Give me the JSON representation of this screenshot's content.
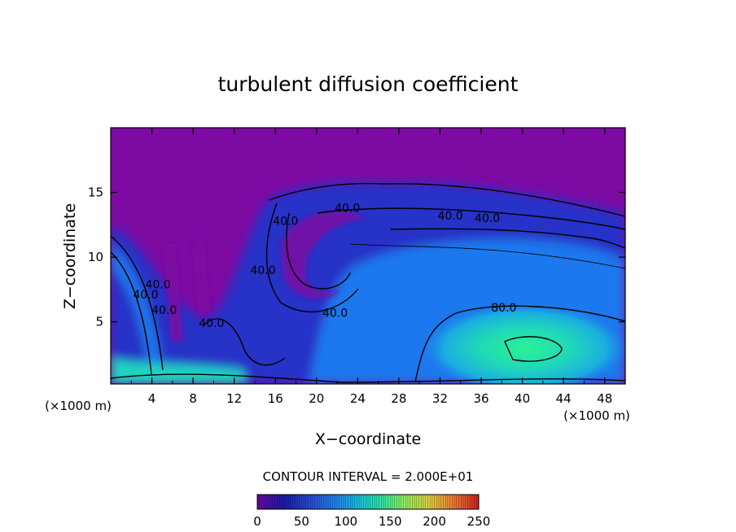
{
  "chart_data": {
    "type": "heatmap",
    "title": "turbulent diffusion coefficient",
    "xlabel": "X−coordinate",
    "ylabel": "Z−coordinate",
    "x_unit_label": "(×1000 m)",
    "xlim": [
      0,
      50
    ],
    "ylim": [
      0.2,
      20
    ],
    "x_ticks": [
      4,
      8,
      12,
      16,
      20,
      24,
      28,
      32,
      36,
      40,
      44,
      48
    ],
    "y_ticks": [
      5,
      10,
      15
    ],
    "contour_interval_label": "CONTOUR INTERVAL = 2.000E+01",
    "colorbar": {
      "min": 0,
      "max": 250,
      "ticks": [
        0,
        50,
        100,
        150,
        200,
        250
      ],
      "colors": [
        "#6a0aa0",
        "#1a1aa8",
        "#2850d8",
        "#1e8cf0",
        "#18c8d8",
        "#30e8a0",
        "#90f060",
        "#e0d040",
        "#f07030",
        "#d02020"
      ]
    },
    "field_colors": {
      "background": "#7d0aa3",
      "low": "#2630c8",
      "mid": "#1c78ee",
      "high": "#1ed6c0",
      "peak": "#28f090"
    },
    "contour_labels": [
      {
        "text": "40.0",
        "x": 17.0,
        "z": 12.5
      },
      {
        "text": "40.0",
        "x": 23.0,
        "z": 13.5
      },
      {
        "text": "40.0",
        "x": 33.0,
        "z": 12.9
      },
      {
        "text": "40.0",
        "x": 36.6,
        "z": 12.7
      },
      {
        "text": "40.0",
        "x": 14.8,
        "z": 8.7
      },
      {
        "text": "40.0",
        "x": 21.8,
        "z": 5.4
      },
      {
        "text": "40.0",
        "x": 4.6,
        "z": 7.6
      },
      {
        "text": "40.0",
        "x": 3.4,
        "z": 6.8
      },
      {
        "text": "40.0",
        "x": 5.2,
        "z": 5.6
      },
      {
        "text": "40.0",
        "x": 9.8,
        "z": 4.6
      },
      {
        "text": "80.0",
        "x": 38.2,
        "z": 5.8
      }
    ]
  }
}
